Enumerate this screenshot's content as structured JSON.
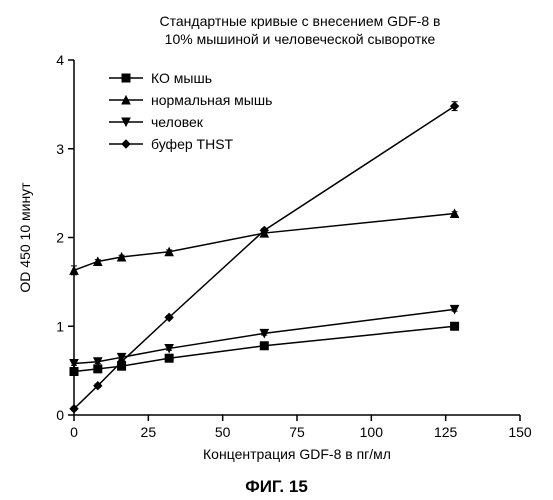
{
  "chart": {
    "type": "line",
    "title_line1": "Стандартные кривые с внесением GDF-8 в",
    "title_line2": "10% мышиной и человеческой сыворотке",
    "title_fontsize": 14,
    "fig_label": "ФИГ. 15",
    "xlabel": "Концентрация GDF-8 в пг/мл",
    "ylabel": "OD 450 10 минут",
    "label_fontsize": 14,
    "xlim": [
      0,
      150
    ],
    "ylim": [
      0,
      4
    ],
    "xticks": [
      0,
      25,
      50,
      75,
      100,
      125,
      150
    ],
    "yticks": [
      0,
      1,
      2,
      3,
      4
    ],
    "x_values": [
      0,
      8,
      16,
      32,
      64,
      128
    ],
    "background_color": "#ffffff",
    "axis_color": "#000000",
    "line_color": "#000000",
    "line_width": 1.5,
    "marker_size": 8,
    "legend": {
      "position": "top-left-inset",
      "items": [
        {
          "label": "КО мышь",
          "marker": "square"
        },
        {
          "label": "нормальная мышь",
          "marker": "triangle-up"
        },
        {
          "label": "человек",
          "marker": "triangle-down"
        },
        {
          "label": "буфер THST",
          "marker": "diamond"
        }
      ]
    },
    "series": [
      {
        "name": "КО мышь",
        "marker": "square",
        "y": [
          0.49,
          0.52,
          0.55,
          0.64,
          0.78,
          1.0
        ],
        "err": [
          0.02,
          0.02,
          0.02,
          0.02,
          0.02,
          0.02
        ]
      },
      {
        "name": "нормальная мышь",
        "marker": "triangle-up",
        "y": [
          1.63,
          1.73,
          1.78,
          1.84,
          2.05,
          2.27
        ],
        "err": [
          0.05,
          0.02,
          0.02,
          0.02,
          0.02,
          0.02
        ]
      },
      {
        "name": "человек",
        "marker": "triangle-down",
        "y": [
          0.58,
          0.6,
          0.65,
          0.75,
          0.92,
          1.19
        ],
        "err": [
          0.02,
          0.02,
          0.02,
          0.02,
          0.02,
          0.02
        ]
      },
      {
        "name": "буфер THST",
        "marker": "diamond",
        "y": [
          0.07,
          0.33,
          0.6,
          1.1,
          2.08,
          3.48
        ],
        "err": [
          0.02,
          0.02,
          0.02,
          0.02,
          0.02,
          0.05
        ]
      }
    ]
  }
}
